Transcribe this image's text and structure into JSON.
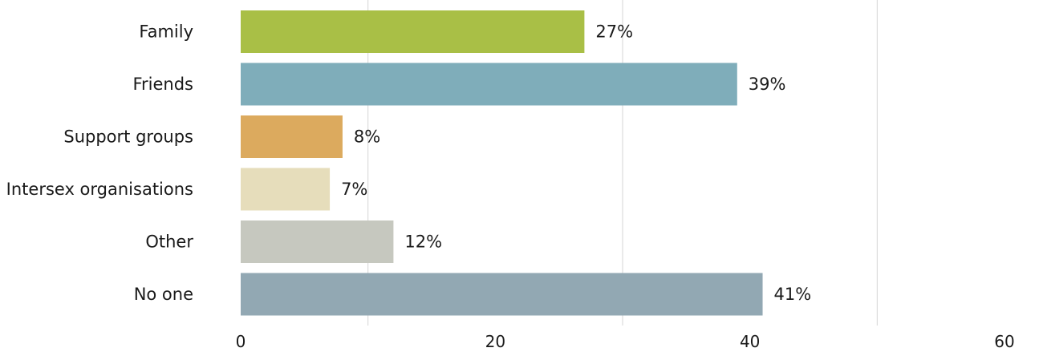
{
  "chart_data": {
    "type": "bar",
    "orientation": "horizontal",
    "categories": [
      "Family",
      "Friends",
      "Support groups",
      "Intersex organisations",
      "Other",
      "No one"
    ],
    "values": [
      27,
      39,
      8,
      7,
      12,
      41
    ],
    "value_labels": [
      "27%",
      "39%",
      "8%",
      "7%",
      "12%",
      "41%"
    ],
    "colors": [
      "#a9bf46",
      "#7fadba",
      "#dcaa5e",
      "#e6ddbb",
      "#c6c8bf",
      "#92a8b3"
    ],
    "xlim": [
      0,
      60
    ],
    "x_ticks": [
      0,
      20,
      40,
      60
    ],
    "gridlines": [
      10,
      30,
      50
    ],
    "grid": true,
    "title": "",
    "xlabel": "",
    "ylabel": ""
  }
}
